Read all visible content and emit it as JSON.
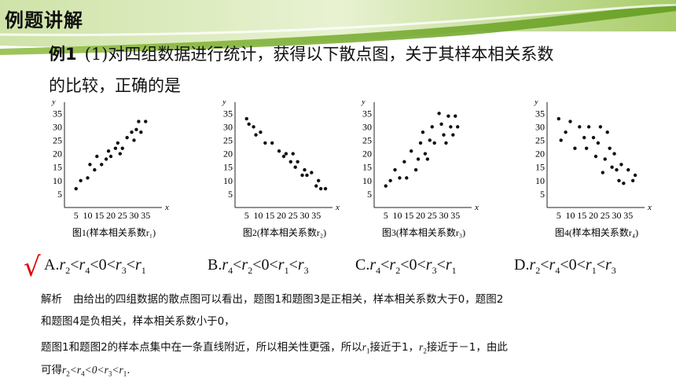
{
  "header": {
    "title": "例题讲解"
  },
  "question": {
    "label": "例1",
    "line1": "(1)对四组数据进行统计，获得以下散点图，关于其样本相关系数",
    "line2": "的比较，正确的是"
  },
  "chart_data": [
    {
      "type": "scatter",
      "caption": "图1(样本相关系数r₁)",
      "ylabel": "y",
      "xlabel": "x",
      "yticks": [
        "35",
        "30",
        "25",
        "20",
        "15",
        "10",
        "5"
      ],
      "xticks": [
        "5",
        "10",
        "15",
        "20",
        "25",
        "30",
        "35"
      ],
      "xlim": [
        0,
        40
      ],
      "ylim": [
        0,
        38
      ],
      "points": [
        [
          5,
          7
        ],
        [
          7,
          10
        ],
        [
          10,
          11
        ],
        [
          11,
          16
        ],
        [
          13,
          14
        ],
        [
          14,
          19
        ],
        [
          16,
          16
        ],
        [
          18,
          18
        ],
        [
          19,
          21
        ],
        [
          20,
          19
        ],
        [
          22,
          22
        ],
        [
          23,
          24
        ],
        [
          24,
          20
        ],
        [
          25,
          22
        ],
        [
          27,
          26
        ],
        [
          29,
          28
        ],
        [
          30,
          25
        ],
        [
          31,
          29
        ],
        [
          32,
          32
        ],
        [
          33,
          28
        ],
        [
          35,
          32
        ]
      ]
    },
    {
      "type": "scatter",
      "caption": "图2(样本相关系数r₂)",
      "ylabel": "y",
      "xlabel": "x",
      "yticks": [
        "35",
        "30",
        "25",
        "20",
        "15",
        "10",
        "5"
      ],
      "xticks": [
        "5",
        "10",
        "15",
        "20",
        "25",
        "30",
        "35"
      ],
      "xlim": [
        0,
        40
      ],
      "ylim": [
        0,
        38
      ],
      "points": [
        [
          5,
          33
        ],
        [
          6,
          31
        ],
        [
          8,
          30
        ],
        [
          9,
          27
        ],
        [
          11,
          28
        ],
        [
          13,
          24
        ],
        [
          16,
          24
        ],
        [
          19,
          21
        ],
        [
          21,
          19
        ],
        [
          22,
          20
        ],
        [
          24,
          17
        ],
        [
          25,
          20
        ],
        [
          26,
          15
        ],
        [
          27,
          17
        ],
        [
          29,
          12
        ],
        [
          30,
          14
        ],
        [
          31,
          12
        ],
        [
          33,
          13
        ],
        [
          35,
          8
        ],
        [
          36,
          10
        ],
        [
          37,
          7
        ],
        [
          39,
          7
        ]
      ]
    },
    {
      "type": "scatter",
      "caption": "图3(样本相关系数r₃)",
      "ylabel": "y",
      "xlabel": "x",
      "yticks": [
        "35",
        "30",
        "25",
        "20",
        "15",
        "10",
        "5"
      ],
      "xticks": [
        "5",
        "10",
        "15",
        "20",
        "25",
        "30",
        "35"
      ],
      "xlim": [
        0,
        40
      ],
      "ylim": [
        0,
        38
      ],
      "points": [
        [
          5,
          8
        ],
        [
          7,
          10
        ],
        [
          9,
          14
        ],
        [
          11,
          11
        ],
        [
          13,
          17
        ],
        [
          14,
          11
        ],
        [
          16,
          21
        ],
        [
          18,
          14
        ],
        [
          19,
          18
        ],
        [
          20,
          24
        ],
        [
          21,
          28
        ],
        [
          22,
          20
        ],
        [
          23,
          18
        ],
        [
          24,
          25
        ],
        [
          25,
          30
        ],
        [
          26,
          24
        ],
        [
          28,
          35
        ],
        [
          29,
          31
        ],
        [
          30,
          27
        ],
        [
          31,
          24
        ],
        [
          32,
          34
        ],
        [
          33,
          30
        ],
        [
          34,
          27
        ],
        [
          35,
          34
        ],
        [
          36,
          30
        ]
      ]
    },
    {
      "type": "scatter",
      "caption": "图4(样本相关系数r₄)",
      "ylabel": "y",
      "xlabel": "x",
      "yticks": [
        "35",
        "30",
        "25",
        "20",
        "15",
        "10",
        "5"
      ],
      "xticks": [
        "5",
        "10",
        "15",
        "20",
        "25",
        "30",
        "35"
      ],
      "xlim": [
        0,
        40
      ],
      "ylim": [
        0,
        38
      ],
      "points": [
        [
          5,
          33
        ],
        [
          6,
          25
        ],
        [
          8,
          28
        ],
        [
          10,
          32
        ],
        [
          12,
          22
        ],
        [
          14,
          30
        ],
        [
          16,
          26
        ],
        [
          17,
          22
        ],
        [
          18,
          30
        ],
        [
          20,
          26
        ],
        [
          21,
          19
        ],
        [
          22,
          24
        ],
        [
          23,
          30
        ],
        [
          24,
          13
        ],
        [
          25,
          18
        ],
        [
          26,
          28
        ],
        [
          27,
          22
        ],
        [
          28,
          15
        ],
        [
          29,
          20
        ],
        [
          30,
          14
        ],
        [
          31,
          10
        ],
        [
          32,
          16
        ],
        [
          33,
          9
        ],
        [
          35,
          14
        ],
        [
          37,
          10
        ],
        [
          38,
          12
        ]
      ]
    }
  ],
  "options": {
    "check_mark": "√",
    "a": "A.",
    "b": "B.",
    "c": "C.",
    "d": "D."
  },
  "solution": {
    "tag": "解析",
    "line1": "由给出的四组数据的散点图可以看出，题图1和题图3是正相关，样本相关系数大于0，题图2",
    "line2": "和题图4是负相关，样本相关系数小于0，",
    "line3a": "题图1和题图2的样本点集中在一条直线附近，所以相关性更强，所以",
    "line3b": "接近于1，",
    "line3c": "接近于－1，由此",
    "line4a": "可得",
    "line4b": "."
  }
}
